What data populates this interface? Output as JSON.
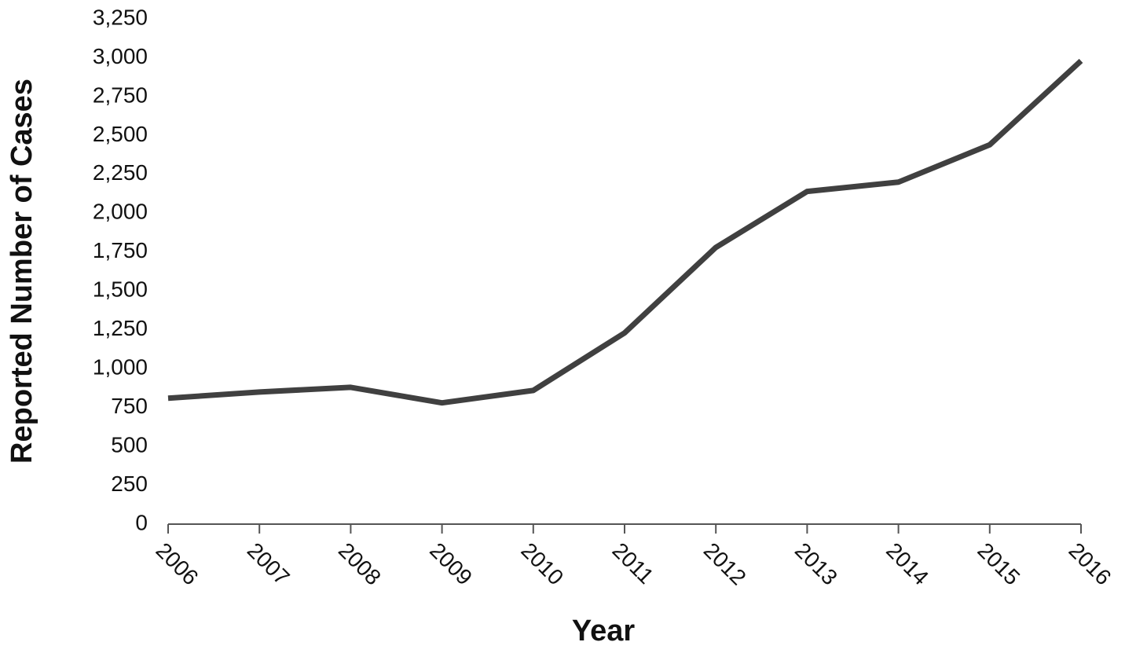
{
  "chart_data": {
    "type": "line",
    "x_label": "Year",
    "y_label": "Reported Number of Cases",
    "categories": [
      "2006",
      "2007",
      "2008",
      "2009",
      "2010",
      "2011",
      "2012",
      "2013",
      "2014",
      "2015",
      "2016"
    ],
    "series": [
      {
        "color": "#404040",
        "values": [
          810,
          850,
          880,
          780,
          860,
          1230,
          1780,
          2140,
          2200,
          2440,
          2980
        ]
      }
    ],
    "ylim": [
      0,
      3250
    ],
    "yticks": [
      0,
      250,
      500,
      750,
      {
        "value": 1000,
        "label": "1,000"
      },
      {
        "value": 1250,
        "label": "1,250"
      },
      {
        "value": 1500,
        "label": "1,500"
      },
      {
        "value": 1750,
        "label": "1,750"
      },
      {
        "value": 2000,
        "label": "2,000"
      },
      {
        "value": 2250,
        "label": "2,250"
      },
      {
        "value": 2500,
        "label": "2,500"
      },
      {
        "value": 2750,
        "label": "2,750"
      },
      {
        "value": 3000,
        "label": "3,000"
      },
      {
        "value": 3250,
        "label": "3,250"
      }
    ],
    "grid": false
  }
}
